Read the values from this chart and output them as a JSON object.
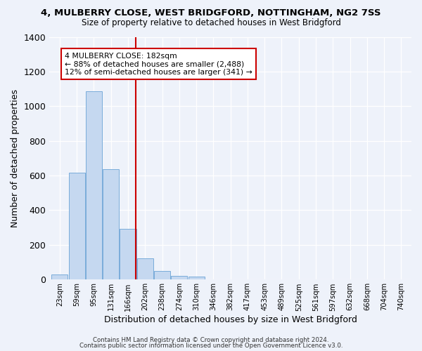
{
  "title": "4, MULBERRY CLOSE, WEST BRIDGFORD, NOTTINGHAM, NG2 7SS",
  "subtitle": "Size of property relative to detached houses in West Bridgford",
  "xlabel": "Distribution of detached houses by size in West Bridgford",
  "ylabel": "Number of detached properties",
  "bar_labels": [
    "23sqm",
    "59sqm",
    "95sqm",
    "131sqm",
    "166sqm",
    "202sqm",
    "238sqm",
    "274sqm",
    "310sqm",
    "346sqm",
    "382sqm",
    "417sqm",
    "453sqm",
    "489sqm",
    "525sqm",
    "561sqm",
    "597sqm",
    "632sqm",
    "668sqm",
    "704sqm",
    "740sqm"
  ],
  "bar_values": [
    30,
    615,
    1085,
    635,
    290,
    120,
    47,
    22,
    15,
    0,
    0,
    0,
    0,
    0,
    0,
    0,
    0,
    0,
    0,
    0,
    0
  ],
  "bar_color": "#c5d8f0",
  "bar_edge_color": "#7aacda",
  "ylim": [
    0,
    1400
  ],
  "yticks": [
    0,
    200,
    400,
    600,
    800,
    1000,
    1200,
    1400
  ],
  "marker_label": "4 MULBERRY CLOSE: 182sqm",
  "annotation_line1": "← 88% of detached houses are smaller (2,488)",
  "annotation_line2": "12% of semi-detached houses are larger (341) →",
  "annotation_box_color": "#ffffff",
  "annotation_box_edge_color": "#cc0000",
  "vline_color": "#cc0000",
  "background_color": "#eef2fa",
  "grid_color": "#ffffff",
  "footer1": "Contains HM Land Registry data © Crown copyright and database right 2024.",
  "footer2": "Contains public sector information licensed under the Open Government Licence v3.0.",
  "bin_width": 36
}
